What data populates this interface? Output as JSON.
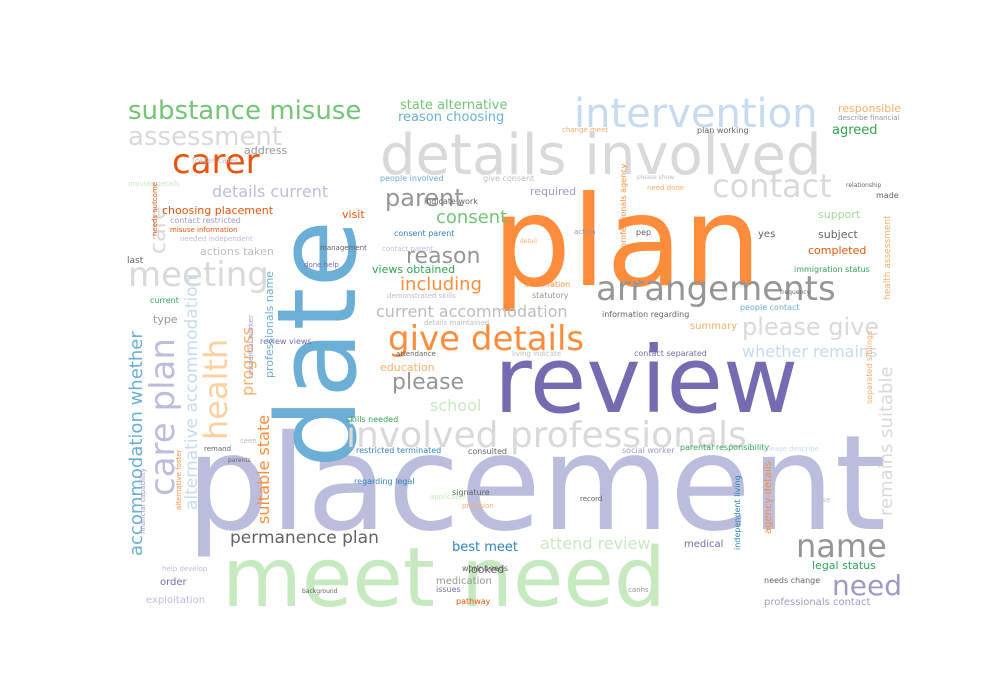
{
  "words": [
    {
      "text": "placement",
      "color": "#bcbddc"
    },
    {
      "text": "plan",
      "color": "#fd8d3c"
    },
    {
      "text": "date",
      "color": "#6baed6"
    },
    {
      "text": "review",
      "color": "#756bb1"
    },
    {
      "text": "meet need",
      "color": "#c7e9c0"
    },
    {
      "text": "details involved",
      "color": "#d9d9d9"
    },
    {
      "text": "intervention",
      "color": "#c6dbef"
    },
    {
      "text": "involved professionals",
      "color": "#d9d9d9"
    },
    {
      "text": "substance misuse",
      "color": "#74c476"
    },
    {
      "text": "give details",
      "color": "#fd8d3c"
    },
    {
      "text": "arrangements",
      "color": "#969696"
    },
    {
      "text": "contact",
      "color": "#d9d9d9"
    },
    {
      "text": "carer",
      "color": "#e6550d"
    },
    {
      "text": "meeting",
      "color": "#d9d9d9"
    },
    {
      "text": "care plan",
      "color": "#bcbddc"
    },
    {
      "text": "health",
      "color": "#fdd0a2"
    },
    {
      "text": "assessment",
      "color": "#d9d9d9"
    },
    {
      "text": "name",
      "color": "#969696"
    },
    {
      "text": "need",
      "color": "#9e9ac8"
    },
    {
      "text": "please give",
      "color": "#d9d9d9"
    },
    {
      "text": "parent",
      "color": "#969696"
    },
    {
      "text": "reason",
      "color": "#969696"
    },
    {
      "text": "please",
      "color": "#969696"
    },
    {
      "text": "permanence plan",
      "color": "#636363"
    },
    {
      "text": "remains suitable",
      "color": "#d9d9d9"
    },
    {
      "text": "whether remains",
      "color": "#c6dbef"
    },
    {
      "text": "current accommodation",
      "color": "#bdbdbd"
    },
    {
      "text": "accommodation whether",
      "color": "#6baed6"
    },
    {
      "text": "alternative accommodation",
      "color": "#c6dbef"
    },
    {
      "text": "suitable state",
      "color": "#fd8d3c"
    },
    {
      "text": "progress",
      "color": "#fdae6b"
    },
    {
      "text": "care",
      "color": "#d9d9d9"
    },
    {
      "text": "including",
      "color": "#fd8d3c"
    },
    {
      "text": "consent",
      "color": "#74c476"
    },
    {
      "text": "school",
      "color": "#c7e9c0"
    },
    {
      "text": "attend review",
      "color": "#c7e9c0"
    },
    {
      "text": "details current",
      "color": "#bcbddc"
    },
    {
      "text": "state alternative",
      "color": "#74c476"
    },
    {
      "text": "reason choosing",
      "color": "#6baed6"
    },
    {
      "text": "choosing placement",
      "color": "#e6550d"
    },
    {
      "text": "views obtained",
      "color": "#31a354"
    },
    {
      "text": "education",
      "color": "#fdae6b"
    },
    {
      "text": "best meet",
      "color": "#3182bd"
    },
    {
      "text": "looked",
      "color": "#636363"
    },
    {
      "text": "completed",
      "color": "#e6550d"
    },
    {
      "text": "support",
      "color": "#a1d99b"
    },
    {
      "text": "subject",
      "color": "#636363"
    },
    {
      "text": "agreed",
      "color": "#31a354"
    },
    {
      "text": "responsible",
      "color": "#fdae6b"
    },
    {
      "text": "visit",
      "color": "#e6550d"
    },
    {
      "text": "required",
      "color": "#9e9ac8"
    },
    {
      "text": "address",
      "color": "#969696"
    },
    {
      "text": "yes",
      "color": "#636363"
    },
    {
      "text": "type",
      "color": "#969696"
    },
    {
      "text": "legal status",
      "color": "#31a354"
    },
    {
      "text": "summary",
      "color": "#fdae6b"
    },
    {
      "text": "professionals contact",
      "color": "#9e9ac8"
    },
    {
      "text": "professionals name",
      "color": "#6baed6"
    },
    {
      "text": "actions taken",
      "color": "#bdbdbd"
    },
    {
      "text": "foster carer",
      "color": "#bdbdbd"
    },
    {
      "text": "last",
      "color": "#636363"
    },
    {
      "text": "current",
      "color": "#31a354"
    },
    {
      "text": "order",
      "color": "#756bb1"
    },
    {
      "text": "exploitation",
      "color": "#bcbddc"
    },
    {
      "text": "medication",
      "color": "#969696"
    },
    {
      "text": "issues",
      "color": "#756bb1"
    },
    {
      "text": "pathway",
      "color": "#e6550d"
    },
    {
      "text": "medical",
      "color": "#756bb1"
    },
    {
      "text": "work needs",
      "color": "#636363"
    },
    {
      "text": "needs change",
      "color": "#636363"
    },
    {
      "text": "signature",
      "color": "#636363"
    },
    {
      "text": "restricted terminated",
      "color": "#3182bd"
    },
    {
      "text": "regarding legal",
      "color": "#3182bd"
    },
    {
      "text": "skills needed",
      "color": "#31a354"
    },
    {
      "text": "consulted",
      "color": "#636363"
    },
    {
      "text": "social worker",
      "color": "#9e9ac8"
    },
    {
      "text": "parental responsibility",
      "color": "#31a354"
    },
    {
      "text": "independent living",
      "color": "#3182bd"
    },
    {
      "text": "agency details",
      "color": "#fd8d3c"
    },
    {
      "text": "health assessment",
      "color": "#fdae6b"
    },
    {
      "text": "separated siblings",
      "color": "#fdae6b"
    },
    {
      "text": "people contact",
      "color": "#6baed6"
    },
    {
      "text": "contact separated",
      "color": "#756bb1"
    },
    {
      "text": "information regarding",
      "color": "#636363"
    },
    {
      "text": "information",
      "color": "#fd8d3c"
    },
    {
      "text": "statutory",
      "color": "#969696"
    },
    {
      "text": "people involved",
      "color": "#6baed6"
    },
    {
      "text": "give consent",
      "color": "#bdbdbd"
    },
    {
      "text": "indicate work",
      "color": "#636363"
    },
    {
      "text": "consent parent",
      "color": "#3182bd"
    },
    {
      "text": "plan working",
      "color": "#636363"
    },
    {
      "text": "management",
      "color": "#636363"
    },
    {
      "text": "done help",
      "color": "#756bb1"
    },
    {
      "text": "demonstrated skills",
      "color": "#bdbdbd"
    },
    {
      "text": "immigration status",
      "color": "#31a354"
    },
    {
      "text": "professionals agency",
      "color": "#fd8d3c"
    },
    {
      "text": "contact restricted",
      "color": "#9e9ac8"
    },
    {
      "text": "misuse information",
      "color": "#e6550d"
    },
    {
      "text": "needed independent",
      "color": "#bcbddc"
    },
    {
      "text": "review views",
      "color": "#756bb1"
    },
    {
      "text": "made",
      "color": "#636363"
    },
    {
      "text": "describe financial",
      "color": "#969696"
    },
    {
      "text": "pep",
      "color": "#636363"
    },
    {
      "text": "action",
      "color": "#969696"
    },
    {
      "text": "change meet",
      "color": "#fdae6b"
    },
    {
      "text": "attendance",
      "color": "#636363"
    },
    {
      "text": "record",
      "color": "#636363"
    },
    {
      "text": "provision",
      "color": "#fdae6b"
    },
    {
      "text": "living indicate",
      "color": "#bdbdbd"
    },
    {
      "text": "remand",
      "color": "#636363"
    },
    {
      "text": "financial capability",
      "color": "#9e9ac8"
    },
    {
      "text": "alternative foster",
      "color": "#fd8d3c"
    },
    {
      "text": "residential worker",
      "color": "#9e9ac8"
    },
    {
      "text": "help develop",
      "color": "#bcbddc"
    },
    {
      "text": "provide details",
      "color": "#c7e9c0"
    },
    {
      "text": "needs outcome",
      "color": "#e6550d"
    },
    {
      "text": "details maintained",
      "color": "#bdbdbd"
    },
    {
      "text": "applicable",
      "color": "#c7e9c0"
    },
    {
      "text": "contact parent",
      "color": "#bcbddc"
    },
    {
      "text": "background",
      "color": "#636363"
    },
    {
      "text": "canhs",
      "color": "#969696"
    },
    {
      "text": "use",
      "color": "#bdbdbd"
    },
    {
      "text": "need done",
      "color": "#fdae6b"
    },
    {
      "text": "please show",
      "color": "#bdbdbd"
    },
    {
      "text": "parents",
      "color": "#636363"
    },
    {
      "text": "seen",
      "color": "#bdbdbd"
    },
    {
      "text": "detail",
      "color": "#fdae6b"
    },
    {
      "text": "frequency",
      "color": "#636363"
    },
    {
      "text": "relationship",
      "color": "#636363"
    },
    {
      "text": "please describe",
      "color": "#c6dbef"
    }
  ]
}
